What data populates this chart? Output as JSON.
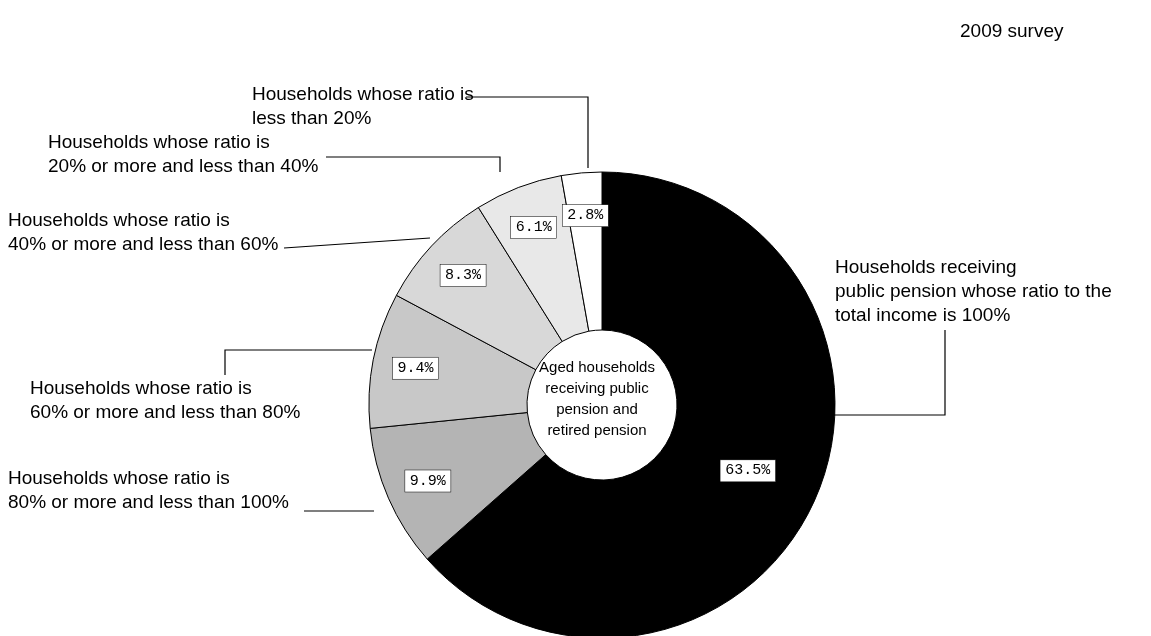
{
  "chart_data": {
    "type": "donut",
    "subtitle": "2009 survey",
    "annotations": [
      "Aged households\nreceiving public\npension and\nretired pension"
    ],
    "categories": [
      "Households receiving\npublic pension whose ratio to the\ntotal income is 100%",
      "Households whose ratio is\n80% or more and less than 100%",
      "Households whose ratio is\n60% or more and less than 80%",
      "Households whose ratio is\n40% or more and less than 60%",
      "Households whose ratio is\n20% or more and less than 40%",
      "Households whose ratio is\nless than 20%"
    ],
    "values": [
      63.5,
      9.9,
      9.4,
      8.3,
      6.1,
      2.8
    ],
    "value_labels": [
      "63.5%",
      "9.9%",
      "9.4%",
      "8.3%",
      "6.1%",
      "2.8%"
    ],
    "colors": [
      "#000000",
      "#b4b4b4",
      "#c8c8c8",
      "#d8d8d8",
      "#e8e8e8",
      "#ffffff"
    ]
  }
}
